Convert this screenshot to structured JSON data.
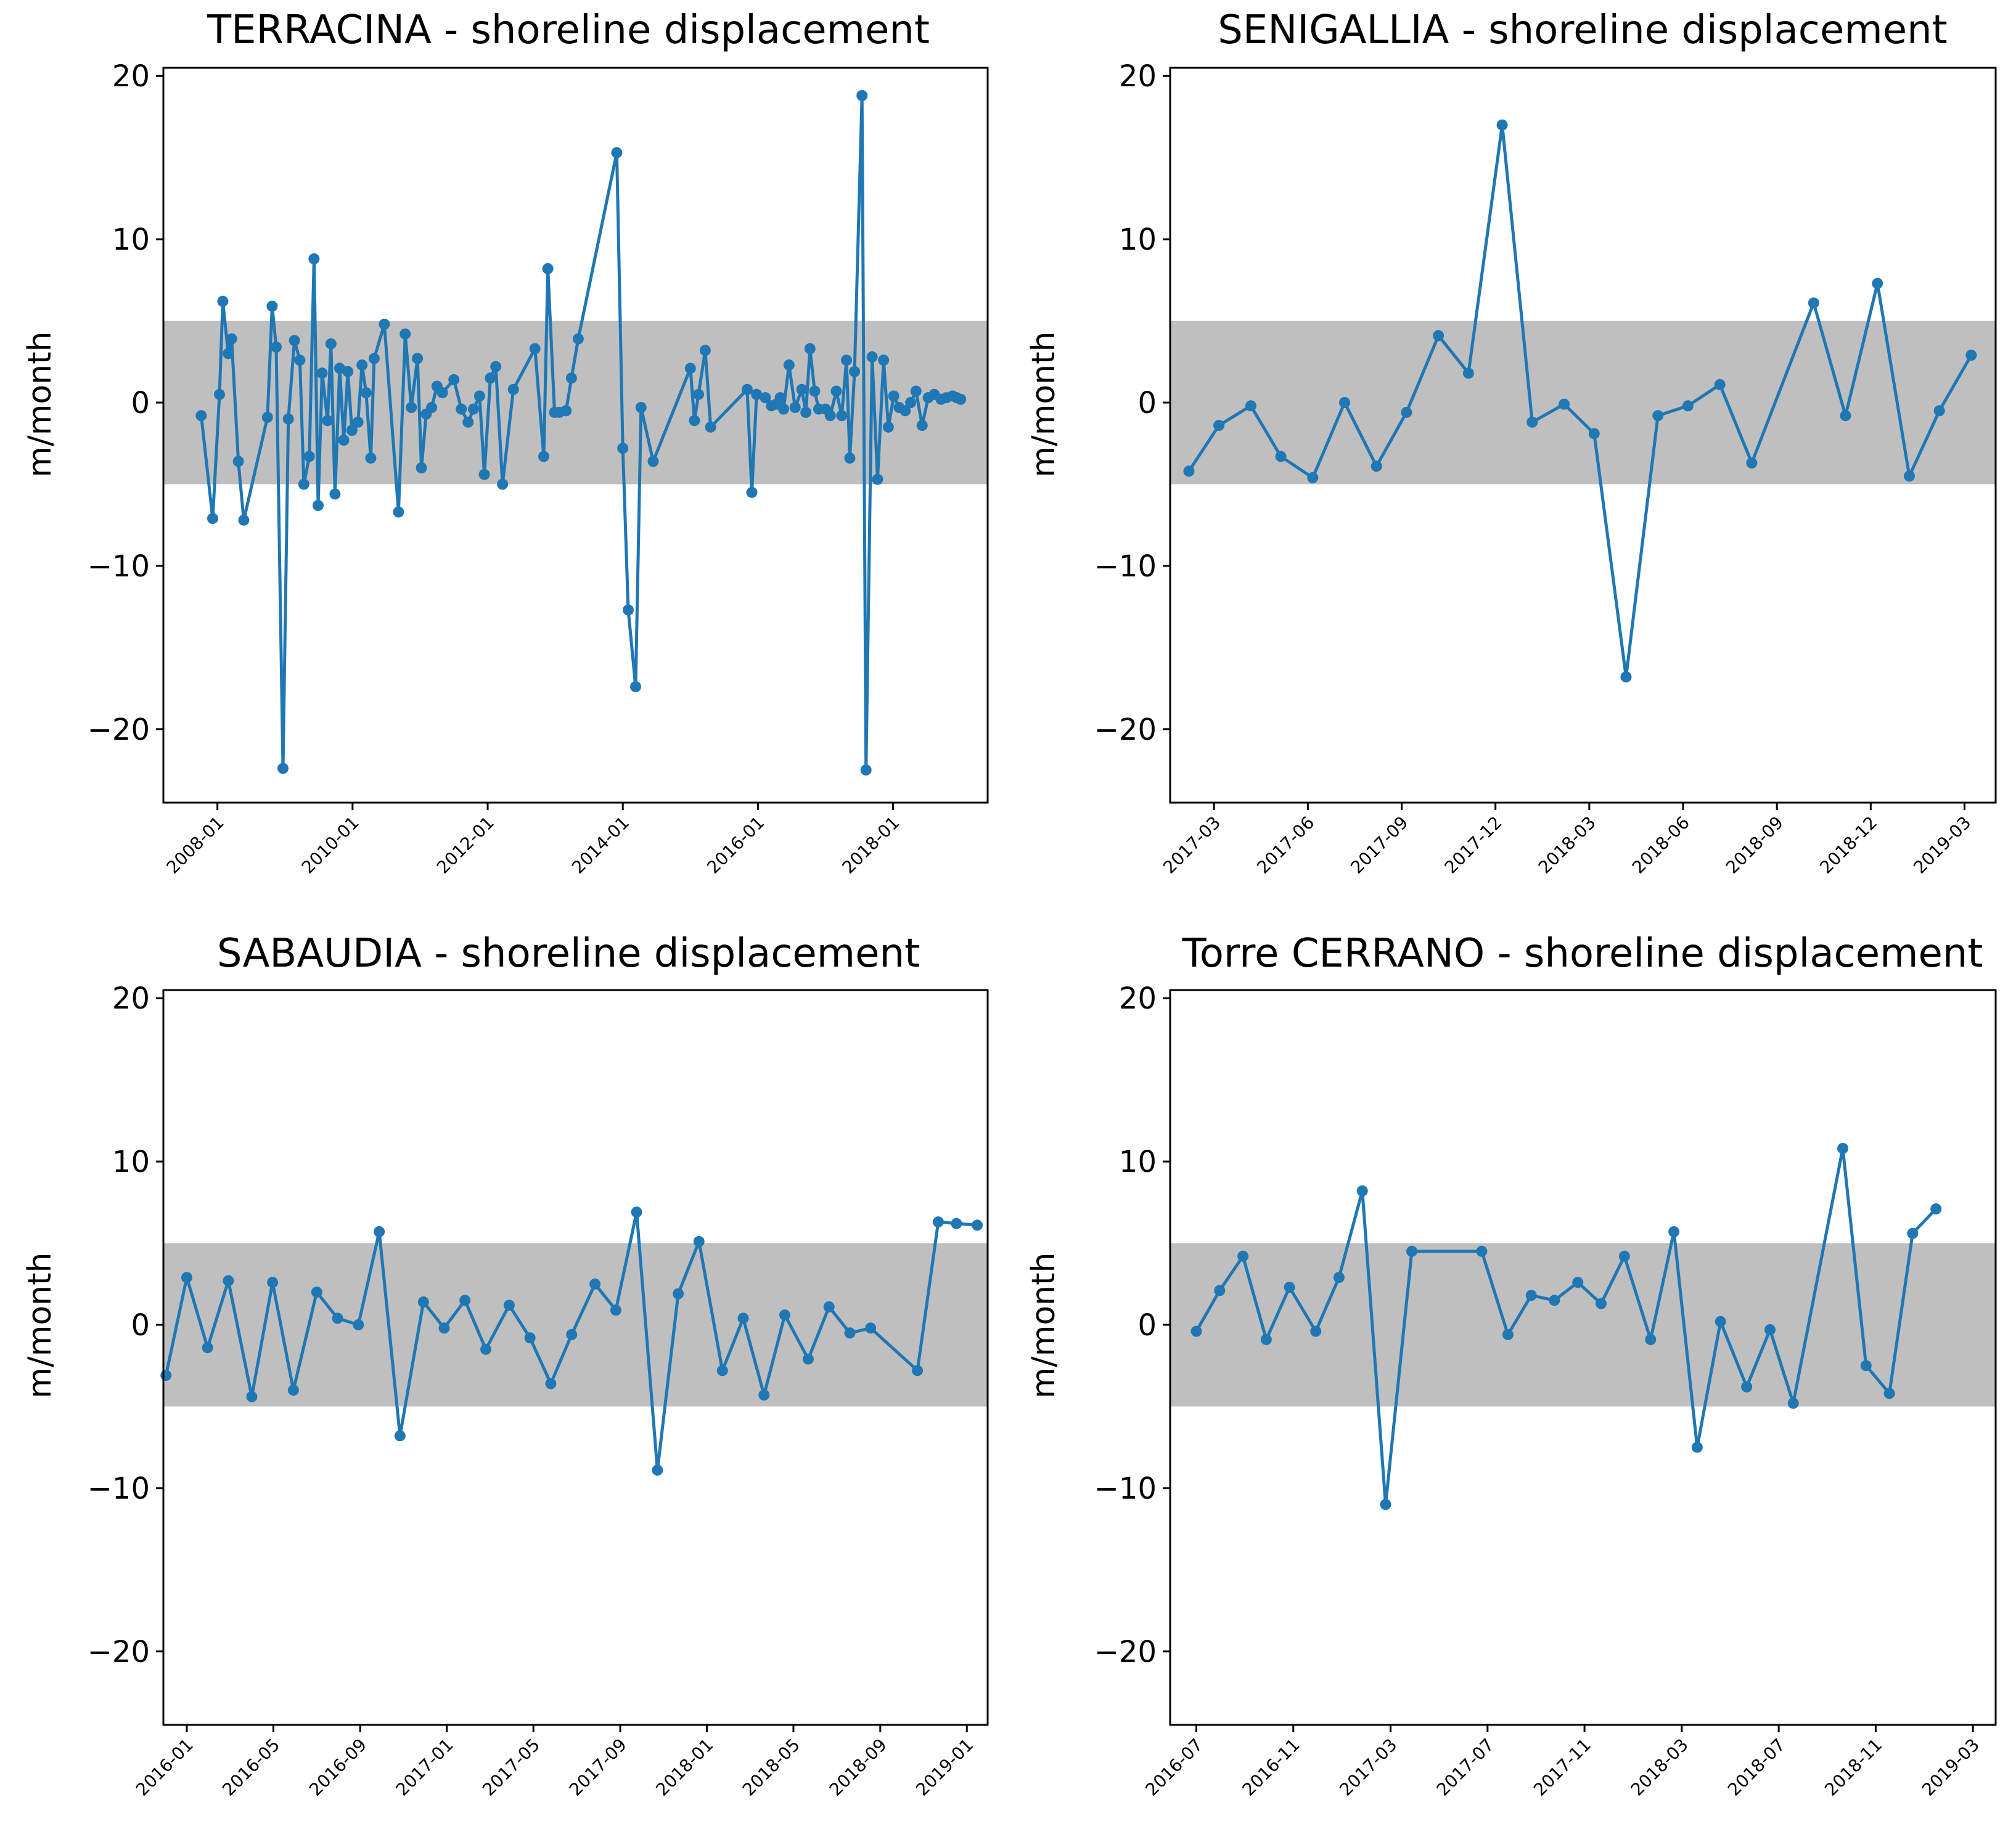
{
  "colors": {
    "line": "#1f77b4",
    "band": "#bfbfbf",
    "axes": "#000000",
    "background": "#ffffff"
  },
  "chart_data": [
    {
      "type": "line",
      "title": "TERRACINA - shoreline displacement",
      "xlabel": "",
      "ylabel": "m/month",
      "ylim": [
        -24.5,
        20.5
      ],
      "yticks": [
        20,
        10,
        0,
        -10,
        -20
      ],
      "ytick_labels": [
        "20",
        "10",
        "0",
        "−10",
        "−20"
      ],
      "xlim": [
        2007.2,
        2019.4
      ],
      "xticks": [
        2008.0,
        2010.0,
        2012.0,
        2014.0,
        2016.0,
        2018.0
      ],
      "xtick_labels": [
        "2008-01",
        "2010-01",
        "2012-01",
        "2014-01",
        "2016-01",
        "2018-01"
      ],
      "band": [
        -5,
        5
      ],
      "grid": false,
      "marker": "circle",
      "series": [
        {
          "name": "shoreline displacement",
          "x": [
            2007.76,
            2007.93,
            2008.03,
            2008.08,
            2008.16,
            2008.21,
            2008.31,
            2008.39,
            2008.74,
            2008.81,
            2008.87,
            2008.97,
            2009.05,
            2009.14,
            2009.22,
            2009.28,
            2009.36,
            2009.43,
            2009.49,
            2009.55,
            2009.63,
            2009.68,
            2009.74,
            2009.81,
            2009.87,
            2009.93,
            2009.99,
            2010.08,
            2010.14,
            2010.2,
            2010.27,
            2010.32,
            2010.47,
            2010.68,
            2010.78,
            2010.87,
            2010.96,
            2011.02,
            2011.09,
            2011.17,
            2011.25,
            2011.33,
            2011.5,
            2011.61,
            2011.71,
            2011.79,
            2011.88,
            2011.95,
            2012.04,
            2012.12,
            2012.22,
            2012.38,
            2012.7,
            2012.83,
            2012.89,
            2012.99,
            2013.06,
            2013.16,
            2013.24,
            2013.34,
            2013.91,
            2014.0,
            2014.08,
            2014.19,
            2014.27,
            2014.45,
            2015.0,
            2015.06,
            2015.12,
            2015.22,
            2015.3,
            2015.84,
            2015.91,
            2015.98,
            2016.11,
            2016.2,
            2016.27,
            2016.33,
            2016.38,
            2016.46,
            2016.55,
            2016.65,
            2016.71,
            2016.77,
            2016.84,
            2016.9,
            2017.0,
            2017.07,
            2017.16,
            2017.24,
            2017.31,
            2017.36,
            2017.43,
            2017.54,
            2017.6,
            2017.69,
            2017.77,
            2017.86,
            2017.93,
            2018.01,
            2018.09,
            2018.18,
            2018.26,
            2018.34,
            2018.43,
            2018.52,
            2018.61,
            2018.71,
            2018.79,
            2018.88,
            2018.94,
            2019.0
          ],
          "y": [
            -0.8,
            -7.1,
            0.5,
            6.2,
            3.0,
            3.9,
            -3.6,
            -7.2,
            -0.9,
            5.9,
            3.4,
            -22.4,
            -1.0,
            3.8,
            2.6,
            -5.0,
            -3.3,
            8.8,
            -6.3,
            1.8,
            -1.1,
            3.6,
            -5.6,
            2.1,
            -2.3,
            1.9,
            -1.7,
            -1.2,
            2.3,
            0.6,
            -3.4,
            2.7,
            4.8,
            -6.7,
            4.2,
            -0.3,
            2.7,
            -4.0,
            -0.7,
            -0.3,
            1.0,
            0.6,
            1.4,
            -0.4,
            -1.2,
            -0.4,
            0.4,
            -4.4,
            1.5,
            2.2,
            -5.0,
            0.8,
            3.3,
            -3.3,
            8.2,
            -0.6,
            -0.6,
            -0.5,
            1.5,
            3.9,
            15.3,
            -2.8,
            -12.7,
            -17.4,
            -0.3,
            -3.6,
            2.1,
            -1.1,
            0.5,
            3.2,
            -1.5,
            0.8,
            -5.5,
            0.5,
            0.3,
            -0.2,
            -0.1,
            0.3,
            -0.4,
            2.3,
            -0.3,
            0.8,
            -0.6,
            3.3,
            0.7,
            -0.4,
            -0.4,
            -0.8,
            0.7,
            -0.8,
            2.6,
            -3.4,
            1.9,
            18.8,
            -22.5,
            2.8,
            -4.7,
            2.6,
            -1.5,
            0.4,
            -0.3,
            -0.5,
            0.0,
            0.7,
            -1.4,
            0.3,
            0.5,
            0.2,
            0.3,
            0.4,
            0.3,
            0.2
          ]
        }
      ]
    },
    {
      "type": "line",
      "title": "SENIGALLIA - shoreline displacement",
      "xlabel": "",
      "ylabel": "m/month",
      "ylim": [
        -24.5,
        20.5
      ],
      "yticks": [
        20,
        10,
        0,
        -10,
        -20
      ],
      "ytick_labels": [
        "20",
        "10",
        "0",
        "−10",
        "−20"
      ],
      "xlim": [
        2017.05,
        2019.25
      ],
      "xticks": [
        2017.167,
        2017.417,
        2017.667,
        2017.917,
        2018.167,
        2018.417,
        2018.667,
        2018.917,
        2019.167
      ],
      "xtick_labels": [
        "2017-03",
        "2017-06",
        "2017-09",
        "2017-12",
        "2018-03",
        "2018-06",
        "2018-09",
        "2018-12",
        "2019-03"
      ],
      "band": [
        -5,
        5
      ],
      "grid": false,
      "marker": "circle",
      "series": [
        {
          "name": "shoreline displacement",
          "x": [
            2017.1,
            2017.18,
            2017.265,
            2017.345,
            2017.43,
            2017.515,
            2017.6,
            2017.68,
            2017.765,
            2017.845,
            2017.935,
            2018.015,
            2018.1,
            2018.18,
            2018.265,
            2018.35,
            2018.43,
            2018.515,
            2018.6,
            2018.765,
            2018.85,
            2018.935,
            2019.02,
            2019.1,
            2019.185
          ],
          "y": [
            -4.2,
            -1.4,
            -0.2,
            -3.3,
            -4.6,
            0.0,
            -3.9,
            -0.6,
            4.1,
            1.8,
            17.0,
            -1.2,
            -0.1,
            -1.9,
            -16.8,
            -0.8,
            -0.2,
            1.1,
            -3.7,
            6.1,
            -0.8,
            7.3,
            -4.5,
            -0.5,
            2.9
          ]
        }
      ]
    },
    {
      "type": "line",
      "title": "SABAUDIA - shoreline displacement",
      "xlabel": "",
      "ylabel": "m/month",
      "ylim": [
        -24.5,
        20.5
      ],
      "yticks": [
        20,
        10,
        0,
        -10,
        -20
      ],
      "ytick_labels": [
        "20",
        "10",
        "0",
        "−10",
        "−20"
      ],
      "xlim": [
        2015.91,
        2019.08
      ],
      "xticks": [
        2016.0,
        2016.333,
        2016.667,
        2017.0,
        2017.333,
        2017.667,
        2018.0,
        2018.333,
        2018.667,
        2019.0
      ],
      "xtick_labels": [
        "2016-01",
        "2016-05",
        "2016-09",
        "2017-01",
        "2017-05",
        "2017-09",
        "2018-01",
        "2018-05",
        "2018-09",
        "2019-01"
      ],
      "band": [
        -5,
        5
      ],
      "grid": false,
      "marker": "circle",
      "series": [
        {
          "name": "shoreline displacement",
          "x": [
            2015.92,
            2016.0,
            2016.08,
            2016.16,
            2016.25,
            2016.33,
            2016.41,
            2016.5,
            2016.58,
            2016.66,
            2016.74,
            2016.82,
            2016.91,
            2016.99,
            2017.07,
            2017.15,
            2017.24,
            2017.32,
            2017.4,
            2017.48,
            2017.57,
            2017.65,
            2017.73,
            2017.81,
            2017.89,
            2017.97,
            2018.06,
            2018.14,
            2018.22,
            2018.3,
            2018.39,
            2018.47,
            2018.55,
            2018.63,
            2018.81,
            2018.89,
            2018.96,
            2019.04
          ],
          "y": [
            -3.1,
            2.9,
            -1.4,
            2.7,
            -4.4,
            2.6,
            -4.0,
            2.0,
            0.4,
            0.0,
            5.7,
            -6.8,
            1.4,
            -0.2,
            1.5,
            -1.5,
            1.2,
            -0.8,
            -3.6,
            -0.6,
            2.5,
            0.9,
            6.9,
            -8.9,
            1.9,
            5.1,
            -2.8,
            0.4,
            -4.3,
            0.6,
            -2.1,
            1.1,
            -0.5,
            -0.2,
            -2.8,
            6.3,
            6.2,
            6.1
          ]
        }
      ]
    },
    {
      "type": "line",
      "title": "Torre CERRANO - shoreline displacement",
      "xlabel": "",
      "ylabel": "m/month",
      "ylim": [
        -24.5,
        20.5
      ],
      "yticks": [
        20,
        10,
        0,
        -10,
        -20
      ],
      "ytick_labels": [
        "20",
        "10",
        "0",
        "−10",
        "−20"
      ],
      "xlim": [
        2016.41,
        2019.245
      ],
      "xticks": [
        2016.5,
        2016.833,
        2017.167,
        2017.5,
        2017.833,
        2018.167,
        2018.5,
        2018.833,
        2019.167
      ],
      "xtick_labels": [
        "2016-07",
        "2016-11",
        "2017-03",
        "2017-07",
        "2017-11",
        "2018-03",
        "2018-07",
        "2018-11",
        "2019-03"
      ],
      "band": [
        -5,
        5
      ],
      "grid": false,
      "marker": "circle",
      "series": [
        {
          "name": "shoreline displacement",
          "x": [
            2016.5,
            2016.58,
            2016.66,
            2016.74,
            2016.82,
            2016.91,
            2016.99,
            2017.07,
            2017.15,
            2017.24,
            2017.48,
            2017.57,
            2017.65,
            2017.73,
            2017.81,
            2017.89,
            2017.97,
            2018.06,
            2018.14,
            2018.22,
            2018.3,
            2018.39,
            2018.47,
            2018.55,
            2018.72,
            2018.8,
            2018.88,
            2018.96,
            2019.04
          ],
          "y": [
            -0.4,
            2.1,
            4.2,
            -0.9,
            2.3,
            -0.4,
            2.9,
            8.2,
            -11.0,
            4.5,
            4.5,
            -0.6,
            1.8,
            1.5,
            2.6,
            1.3,
            4.2,
            -0.9,
            5.7,
            -7.5,
            0.2,
            -3.8,
            -0.3,
            -4.8,
            10.8,
            -2.5,
            -4.2,
            5.6,
            7.1
          ]
        }
      ]
    }
  ]
}
